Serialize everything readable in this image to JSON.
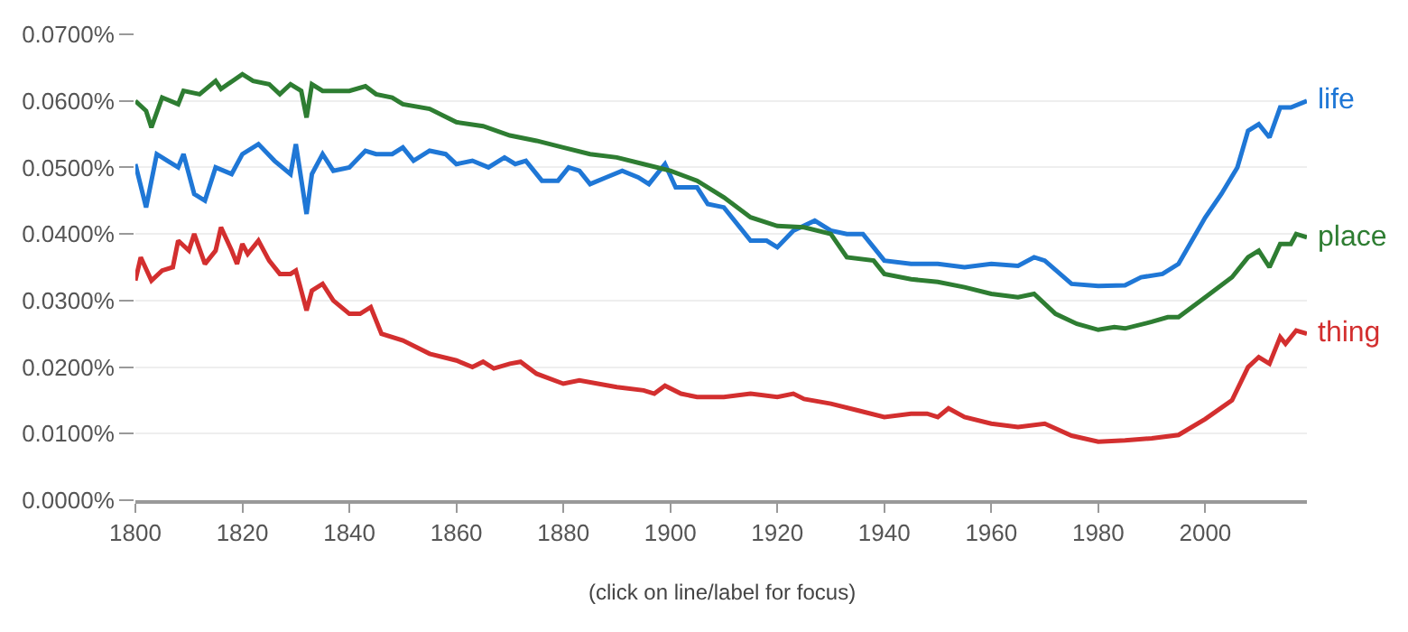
{
  "chart_data": {
    "type": "line",
    "xlim": [
      1800,
      2019
    ],
    "xticks": [
      1800,
      1820,
      1840,
      1860,
      1880,
      1900,
      1920,
      1940,
      1960,
      1980,
      2000
    ],
    "ylim": [
      0,
      0.07
    ],
    "yticks": [
      {
        "value": 0,
        "label": "0.0000%"
      },
      {
        "value": 0.01,
        "label": "0.0100%"
      },
      {
        "value": 0.02,
        "label": "0.0200%"
      },
      {
        "value": 0.03,
        "label": "0.0300%"
      },
      {
        "value": 0.04,
        "label": "0.0400%"
      },
      {
        "value": 0.05,
        "label": "0.0500%"
      },
      {
        "value": 0.06,
        "label": "0.0600%"
      },
      {
        "value": 0.07,
        "label": "0.0700%"
      }
    ],
    "grid": "y",
    "legend": false,
    "annotations": [
      "(click on line/label for focus)"
    ],
    "series": [
      {
        "name": "life",
        "color": "#1f77d6",
        "x": [
          1800,
          1802,
          1804,
          1806,
          1808,
          1809,
          1811,
          1813,
          1815,
          1818,
          1820,
          1823,
          1826,
          1829,
          1830,
          1832,
          1833,
          1835,
          1837,
          1840,
          1843,
          1845,
          1848,
          1850,
          1852,
          1855,
          1858,
          1860,
          1863,
          1866,
          1869,
          1871,
          1873,
          1876,
          1879,
          1881,
          1883,
          1885,
          1888,
          1891,
          1894,
          1896,
          1899,
          1901,
          1905,
          1907,
          1910,
          1915,
          1918,
          1920,
          1923,
          1927,
          1930,
          1933,
          1936,
          1938,
          1940,
          1945,
          1950,
          1955,
          1960,
          1965,
          1968,
          1970,
          1975,
          1980,
          1985,
          1988,
          1992,
          1995,
          2000,
          2003,
          2006,
          2008,
          2010,
          2012,
          2014,
          2016,
          2019
        ],
        "values": [
          0.0505,
          0.044,
          0.052,
          0.051,
          0.05,
          0.052,
          0.046,
          0.045,
          0.05,
          0.049,
          0.052,
          0.0535,
          0.051,
          0.049,
          0.0535,
          0.043,
          0.049,
          0.052,
          0.0495,
          0.05,
          0.0525,
          0.052,
          0.052,
          0.053,
          0.051,
          0.0525,
          0.052,
          0.0505,
          0.051,
          0.05,
          0.0515,
          0.0505,
          0.051,
          0.048,
          0.048,
          0.05,
          0.0495,
          0.0475,
          0.0485,
          0.0495,
          0.0485,
          0.0475,
          0.0505,
          0.047,
          0.047,
          0.0445,
          0.044,
          0.039,
          0.039,
          0.038,
          0.0405,
          0.042,
          0.0405,
          0.04,
          0.04,
          0.038,
          0.036,
          0.0355,
          0.0355,
          0.035,
          0.0355,
          0.0352,
          0.0365,
          0.036,
          0.0325,
          0.0322,
          0.0323,
          0.0335,
          0.034,
          0.0355,
          0.0425,
          0.046,
          0.05,
          0.0555,
          0.0565,
          0.0545,
          0.059,
          0.059,
          0.06
        ]
      },
      {
        "name": "place",
        "color": "#2e7d32",
        "x": [
          1800,
          1802,
          1803,
          1805,
          1808,
          1809,
          1812,
          1815,
          1816,
          1820,
          1822,
          1825,
          1827,
          1829,
          1831,
          1832,
          1833,
          1835,
          1840,
          1843,
          1845,
          1848,
          1850,
          1855,
          1860,
          1865,
          1870,
          1875,
          1880,
          1885,
          1890,
          1895,
          1900,
          1905,
          1910,
          1915,
          1920,
          1925,
          1930,
          1933,
          1938,
          1940,
          1945,
          1950,
          1955,
          1960,
          1965,
          1968,
          1972,
          1976,
          1980,
          1983,
          1985,
          1990,
          1993,
          1995,
          2000,
          2005,
          2008,
          2010,
          2012,
          2014,
          2016,
          2017,
          2019
        ],
        "values": [
          0.06,
          0.0585,
          0.056,
          0.0605,
          0.0595,
          0.0615,
          0.061,
          0.063,
          0.0618,
          0.064,
          0.063,
          0.0625,
          0.061,
          0.0625,
          0.0615,
          0.0575,
          0.0625,
          0.0615,
          0.0615,
          0.0622,
          0.061,
          0.0605,
          0.0595,
          0.0588,
          0.0568,
          0.0562,
          0.0548,
          0.054,
          0.053,
          0.052,
          0.0515,
          0.0505,
          0.0495,
          0.048,
          0.0455,
          0.0425,
          0.0412,
          0.041,
          0.04,
          0.0365,
          0.036,
          0.034,
          0.0332,
          0.0328,
          0.032,
          0.031,
          0.0305,
          0.031,
          0.028,
          0.0265,
          0.0256,
          0.026,
          0.0258,
          0.0268,
          0.0275,
          0.0275,
          0.0305,
          0.0335,
          0.0365,
          0.0375,
          0.035,
          0.0385,
          0.0385,
          0.04,
          0.0395
        ]
      },
      {
        "name": "thing",
        "color": "#d32f2f",
        "x": [
          1800,
          1801,
          1803,
          1805,
          1807,
          1808,
          1810,
          1811,
          1813,
          1815,
          1816,
          1818,
          1819,
          1820,
          1821,
          1823,
          1825,
          1827,
          1829,
          1830,
          1832,
          1833,
          1835,
          1837,
          1840,
          1842,
          1844,
          1846,
          1850,
          1855,
          1860,
          1863,
          1865,
          1867,
          1870,
          1872,
          1875,
          1880,
          1883,
          1890,
          1895,
          1897,
          1899,
          1902,
          1905,
          1910,
          1915,
          1920,
          1923,
          1925,
          1930,
          1935,
          1940,
          1945,
          1948,
          1950,
          1952,
          1955,
          1960,
          1965,
          1970,
          1975,
          1980,
          1985,
          1990,
          1995,
          2000,
          2005,
          2008,
          2010,
          2012,
          2014,
          2015,
          2017,
          2019
        ],
        "values": [
          0.033,
          0.0365,
          0.033,
          0.0345,
          0.035,
          0.039,
          0.0375,
          0.04,
          0.0355,
          0.0375,
          0.041,
          0.0375,
          0.0355,
          0.0385,
          0.037,
          0.039,
          0.036,
          0.034,
          0.034,
          0.0345,
          0.0285,
          0.0315,
          0.0325,
          0.03,
          0.028,
          0.028,
          0.029,
          0.025,
          0.024,
          0.022,
          0.021,
          0.02,
          0.0208,
          0.0198,
          0.0205,
          0.0208,
          0.019,
          0.0175,
          0.018,
          0.017,
          0.0165,
          0.016,
          0.0172,
          0.016,
          0.0155,
          0.0155,
          0.016,
          0.0155,
          0.016,
          0.0152,
          0.0145,
          0.0135,
          0.0125,
          0.013,
          0.013,
          0.0125,
          0.0138,
          0.0125,
          0.0115,
          0.011,
          0.0115,
          0.0097,
          0.0088,
          0.009,
          0.0093,
          0.0098,
          0.0122,
          0.015,
          0.02,
          0.0215,
          0.0205,
          0.0245,
          0.0235,
          0.0255,
          0.025
        ]
      }
    ]
  }
}
